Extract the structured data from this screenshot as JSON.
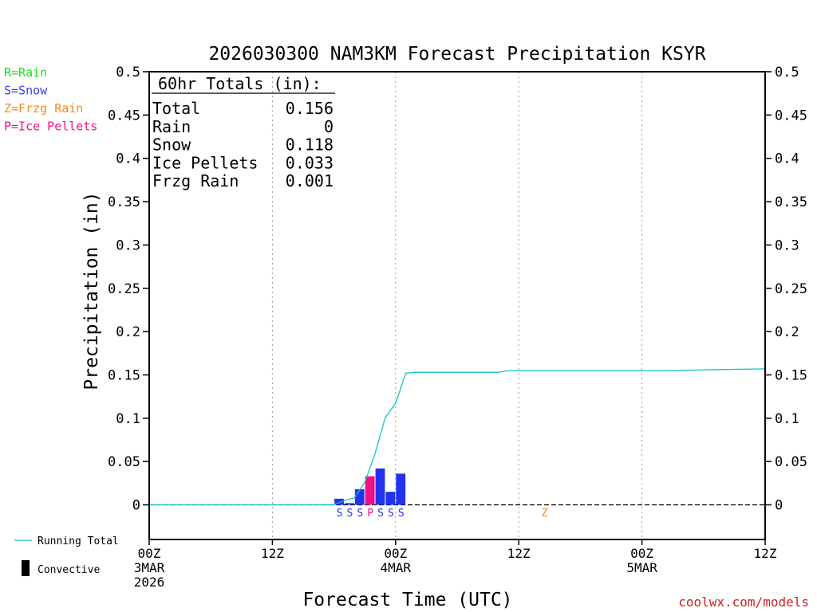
{
  "chart_data": {
    "type": "bar",
    "title": "2026030300 NAM3KM Forecast Precipitation KSYR",
    "xlabel": "Forecast Time (UTC)",
    "ylabel": "Precipitation (in)",
    "ylim": [
      -0.04,
      0.5
    ],
    "xlim_hours": [
      0,
      60
    ],
    "y_ticks": [
      0,
      0.05,
      0.1,
      0.15,
      0.2,
      0.25,
      0.3,
      0.35,
      0.4,
      0.45,
      0.5
    ],
    "y_tick_labels": [
      "0",
      "0.05",
      "0.1",
      "0.15",
      "0.2",
      "0.25",
      "0.3",
      "0.35",
      "0.4",
      "0.45",
      "0.5"
    ],
    "x_ticks": [
      {
        "hour": 0,
        "line1": "00Z",
        "line2": "3MAR",
        "line3": "2026"
      },
      {
        "hour": 12,
        "line1": "12Z",
        "line2": "",
        "line3": ""
      },
      {
        "hour": 24,
        "line1": "00Z",
        "line2": "4MAR",
        "line3": ""
      },
      {
        "hour": 36,
        "line1": "12Z",
        "line2": "",
        "line3": ""
      },
      {
        "hour": 48,
        "line1": "00Z",
        "line2": "5MAR",
        "line3": ""
      },
      {
        "hour": 60,
        "line1": "12Z",
        "line2": "",
        "line3": ""
      }
    ],
    "legend": [
      {
        "label": "R=Rain",
        "color": "#22dd22"
      },
      {
        "label": "S=Snow",
        "color": "#3344ee"
      },
      {
        "label": "Z=Frzg Rain",
        "color": "#f08a24"
      },
      {
        "label": "P=Ice Pellets",
        "color": "#ee1188"
      }
    ],
    "series_legend": [
      {
        "label": "Running Total",
        "color": "#11c4c4",
        "kind": "line"
      },
      {
        "label": "Convective",
        "color": "#000000",
        "kind": "bar"
      }
    ],
    "totals": {
      "heading": "60hr Totals (in):",
      "rows": [
        {
          "label": "Total",
          "value": "0.156"
        },
        {
          "label": "Rain",
          "value": "0"
        },
        {
          "label": "Snow",
          "value": "0.118"
        },
        {
          "label": "Ice Pellets",
          "value": "0.033"
        },
        {
          "label": "Frzg Rain",
          "value": "0.001"
        }
      ]
    },
    "bars": [
      {
        "hour": 19,
        "value": 0.007,
        "ptype": "S",
        "color": "#2233ee"
      },
      {
        "hour": 20,
        "value": 0.002,
        "ptype": "S",
        "color": "#2233ee"
      },
      {
        "hour": 21,
        "value": 0.018,
        "ptype": "S",
        "color": "#2233ee"
      },
      {
        "hour": 22,
        "value": 0.033,
        "ptype": "P",
        "color": "#ee1188"
      },
      {
        "hour": 23,
        "value": 0.042,
        "ptype": "S",
        "color": "#2233ee"
      },
      {
        "hour": 24,
        "value": 0.015,
        "ptype": "S",
        "color": "#2233ee"
      },
      {
        "hour": 25,
        "value": 0.036,
        "ptype": "S",
        "color": "#2233ee"
      }
    ],
    "markers": [
      {
        "hour": 39,
        "ptype": "Z",
        "color": "#f08a24"
      }
    ],
    "running_total": {
      "color": "#11c4c4",
      "hours": [
        0,
        18,
        19,
        20,
        21,
        22,
        23,
        24,
        25,
        26,
        30,
        34,
        35,
        40,
        45,
        50,
        55,
        60
      ],
      "values": [
        0,
        0,
        0.005,
        0.008,
        0.026,
        0.059,
        0.101,
        0.117,
        0.152,
        0.153,
        0.153,
        0.153,
        0.155,
        0.155,
        0.155,
        0.155,
        0.156,
        0.157
      ]
    },
    "credit": "coolwx.com/models"
  }
}
